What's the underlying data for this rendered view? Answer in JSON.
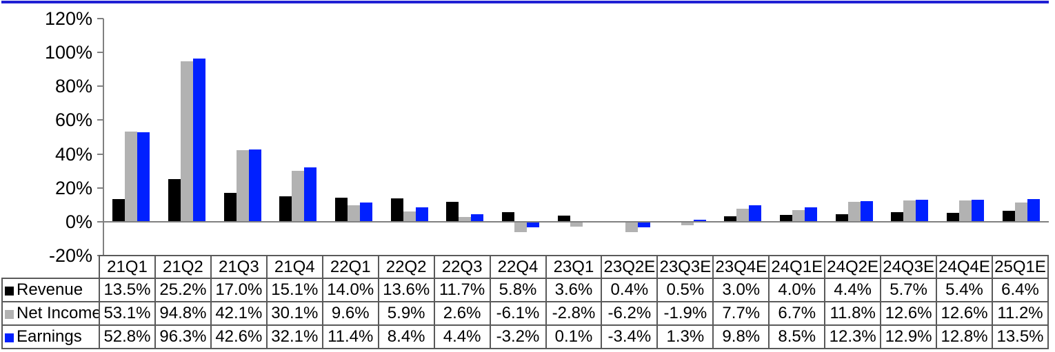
{
  "colors": {
    "top_rule": "#1f1fd4",
    "axis": "#808080",
    "zero_line": "#808080",
    "table_border": "#595959",
    "background": "#ffffff",
    "text": "#000000"
  },
  "chart_data": {
    "type": "bar",
    "title": "",
    "xlabel": "",
    "ylabel": "",
    "categories": [
      "21Q1",
      "21Q2",
      "21Q3",
      "21Q4",
      "22Q1",
      "22Q2",
      "22Q3",
      "22Q4",
      "23Q1",
      "23Q2E",
      "23Q3E",
      "23Q4E",
      "24Q1E",
      "24Q2E",
      "24Q3E",
      "24Q4E",
      "25Q1E"
    ],
    "series": [
      {
        "name": "Revenue",
        "color": "#000000",
        "values": [
          13.5,
          25.2,
          17.0,
          15.1,
          14.0,
          13.6,
          11.7,
          5.8,
          3.6,
          0.4,
          0.5,
          3.0,
          4.0,
          4.4,
          5.7,
          5.4,
          6.4
        ]
      },
      {
        "name": "Net Income",
        "color": "#b2b2b2",
        "values": [
          53.1,
          94.8,
          42.1,
          30.1,
          9.6,
          5.9,
          2.6,
          -6.1,
          -2.8,
          -6.2,
          -1.9,
          7.7,
          6.7,
          11.8,
          12.6,
          12.6,
          11.2
        ]
      },
      {
        "name": "Earnings",
        "color": "#0020ff",
        "values": [
          52.8,
          96.3,
          42.6,
          32.1,
          11.4,
          8.4,
          4.4,
          -3.2,
          0.1,
          -3.4,
          1.3,
          9.8,
          8.5,
          12.3,
          12.9,
          12.8,
          13.5
        ]
      }
    ],
    "ylim": [
      -20,
      120
    ],
    "ytick_step": 20,
    "ytick_labels": [
      "120%",
      "100%",
      "80%",
      "60%",
      "40%",
      "20%",
      "0%",
      "-20%"
    ],
    "value_suffix": "%",
    "value_decimals": 1,
    "grid": "zero-line-only",
    "legend_position": "table-rows-left"
  }
}
